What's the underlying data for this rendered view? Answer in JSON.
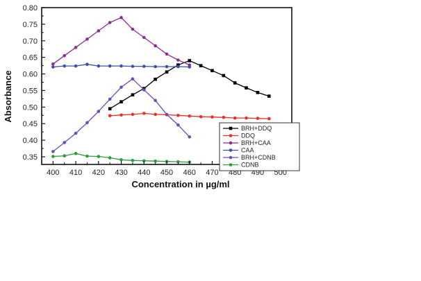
{
  "chart_data": {
    "type": "line",
    "title": "",
    "xlabel": "Concentration in µg/ml",
    "ylabel": "Absorbance",
    "xlim": [
      395,
      505
    ],
    "ylim": [
      0.327,
      0.8
    ],
    "xticks": [
      400,
      410,
      420,
      430,
      440,
      450,
      460,
      470,
      480,
      490,
      500
    ],
    "yticks": [
      0.35,
      0.4,
      0.45,
      0.5,
      0.55,
      0.6,
      0.65,
      0.7,
      0.75,
      0.8
    ],
    "ytick_labels": [
      "0.35",
      "0.40",
      "0.45",
      "0.50",
      "0.55",
      "0.60",
      "0.65",
      "0.70",
      "0.75",
      "0.80"
    ],
    "grid": false,
    "legend_position": "lower right inside",
    "series": [
      {
        "name": "BRH+DDQ",
        "color": "#000000",
        "marker": "square",
        "x": [
          425,
          430,
          435,
          440,
          445,
          450,
          455,
          460,
          465,
          470,
          475,
          480,
          485,
          490,
          495
        ],
        "values": [
          0.495,
          0.516,
          0.537,
          0.556,
          0.584,
          0.606,
          0.627,
          0.64,
          0.625,
          0.61,
          0.595,
          0.573,
          0.558,
          0.544,
          0.533
        ]
      },
      {
        "name": "DDQ",
        "color": "#e8302a",
        "marker": "circle",
        "x": [
          425,
          430,
          435,
          440,
          445,
          450,
          455,
          460,
          465,
          470,
          475,
          480,
          485,
          490,
          495
        ],
        "values": [
          0.474,
          0.476,
          0.478,
          0.481,
          0.478,
          0.477,
          0.475,
          0.473,
          0.471,
          0.47,
          0.469,
          0.467,
          0.467,
          0.466,
          0.465
        ]
      },
      {
        "name": "BRH+CAA",
        "color": "#8b2f8f",
        "marker": "circle",
        "x": [
          400,
          405,
          410,
          415,
          420,
          425,
          430,
          435,
          440,
          445,
          450,
          455,
          460
        ],
        "values": [
          0.63,
          0.655,
          0.68,
          0.705,
          0.73,
          0.755,
          0.77,
          0.735,
          0.71,
          0.685,
          0.66,
          0.642,
          0.627
        ]
      },
      {
        "name": "CAA",
        "color": "#3a4fb0",
        "marker": "circle",
        "x": [
          400,
          405,
          410,
          415,
          420,
          425,
          430,
          435,
          440,
          445,
          450,
          455,
          460
        ],
        "values": [
          0.621,
          0.624,
          0.624,
          0.629,
          0.624,
          0.624,
          0.624,
          0.623,
          0.623,
          0.622,
          0.622,
          0.622,
          0.621
        ]
      },
      {
        "name": "BRH+CDNB",
        "color": "#6a4fb3",
        "marker": "circle",
        "x": [
          400,
          405,
          410,
          415,
          420,
          425,
          430,
          435,
          440,
          445,
          450,
          455,
          460
        ],
        "values": [
          0.366,
          0.393,
          0.421,
          0.453,
          0.487,
          0.524,
          0.56,
          0.585,
          0.552,
          0.52,
          0.478,
          0.446,
          0.41
        ]
      },
      {
        "name": "CDNB",
        "color": "#2f9a3e",
        "marker": "circle",
        "x": [
          400,
          405,
          410,
          415,
          420,
          425,
          430,
          435,
          440,
          445,
          450,
          455,
          460
        ],
        "values": [
          0.351,
          0.353,
          0.36,
          0.352,
          0.351,
          0.347,
          0.341,
          0.339,
          0.338,
          0.337,
          0.336,
          0.335,
          0.334
        ]
      }
    ]
  },
  "labels": {
    "x_axis_title": "Concentration in µg/ml",
    "y_axis_title": "Absorbance"
  }
}
